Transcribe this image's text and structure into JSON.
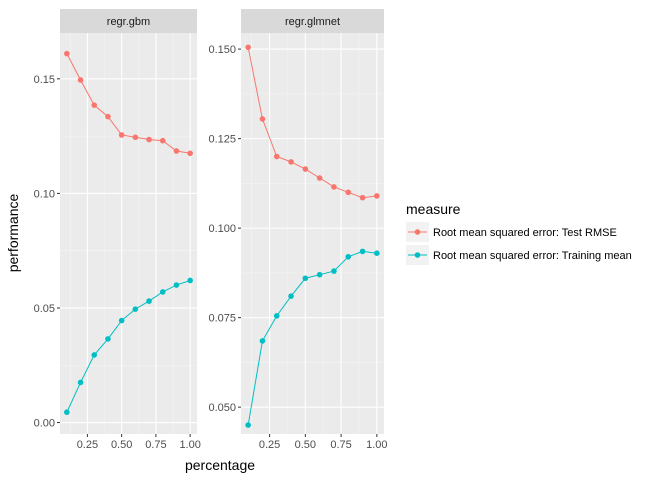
{
  "chart_data": {
    "type": "line",
    "xlabel": "percentage",
    "ylabel": "performance",
    "legend": {
      "title": "measure",
      "position": "right",
      "entries": [
        {
          "label": "Root mean squared error: Test RMSE",
          "color": "#F8766D"
        },
        {
          "label": "Root mean squared error: Training mean",
          "color": "#00BFC4"
        }
      ]
    },
    "panels": [
      {
        "title": "regr.gbm",
        "x": [
          0.1,
          0.2,
          0.3,
          0.4,
          0.5,
          0.6,
          0.7,
          0.8,
          0.9,
          1.0
        ],
        "xlim": [
          0.05,
          1.05
        ],
        "ylim": [
          -0.005,
          0.17
        ],
        "xticks": [
          "0.25",
          "0.50",
          "0.75",
          "1.00"
        ],
        "xtick_values": [
          0.25,
          0.5,
          0.75,
          1.0
        ],
        "yticks": [
          "0.00",
          "0.05",
          "0.10",
          "0.15"
        ],
        "ytick_values": [
          0.0,
          0.05,
          0.1,
          0.15
        ],
        "series": [
          {
            "name": "Root mean squared error: Test RMSE",
            "color": "#F8766D",
            "values": [
              0.161,
              0.1495,
              0.1385,
              0.1335,
              0.1255,
              0.1245,
              0.1235,
              0.123,
              0.1185,
              0.1175
            ]
          },
          {
            "name": "Root mean squared error: Training mean",
            "color": "#00BFC4",
            "values": [
              0.0045,
              0.0175,
              0.0295,
              0.0365,
              0.0445,
              0.0495,
              0.053,
              0.057,
              0.06,
              0.062
            ]
          }
        ]
      },
      {
        "title": "regr.glmnet",
        "x": [
          0.1,
          0.2,
          0.3,
          0.4,
          0.5,
          0.6,
          0.7,
          0.8,
          0.9,
          1.0
        ],
        "xlim": [
          0.05,
          1.05
        ],
        "ylim": [
          0.0425,
          0.1545
        ],
        "xticks": [
          "0.25",
          "0.50",
          "0.75",
          "1.00"
        ],
        "xtick_values": [
          0.25,
          0.5,
          0.75,
          1.0
        ],
        "yticks": [
          "0.050",
          "0.075",
          "0.100",
          "0.125",
          "0.150"
        ],
        "ytick_values": [
          0.05,
          0.075,
          0.1,
          0.125,
          0.15
        ],
        "series": [
          {
            "name": "Root mean squared error: Test RMSE",
            "color": "#F8766D",
            "values": [
              0.1505,
              0.1305,
              0.12,
              0.1185,
              0.1165,
              0.114,
              0.1115,
              0.11,
              0.1085,
              0.109
            ]
          },
          {
            "name": "Root mean squared error: Training mean",
            "color": "#00BFC4",
            "values": [
              0.045,
              0.0685,
              0.0755,
              0.081,
              0.086,
              0.087,
              0.088,
              0.092,
              0.0935,
              0.093
            ]
          }
        ]
      }
    ]
  }
}
